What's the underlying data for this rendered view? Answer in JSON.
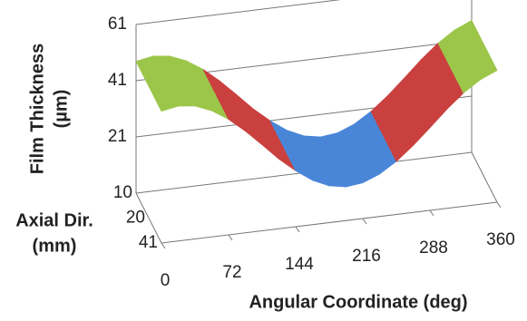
{
  "chart_data": {
    "type": "surface",
    "z_label": [
      "Film Thickness",
      "(µm)"
    ],
    "depth_label": [
      "Axial Dir.",
      "(mm)"
    ],
    "x_label": "Angular Coordinate (deg)",
    "x": [
      0,
      18,
      36,
      54,
      72,
      90,
      108,
      126,
      144,
      162,
      180,
      198,
      216,
      234,
      252,
      270,
      288,
      306,
      324,
      342,
      360
    ],
    "xlim": [
      0,
      360
    ],
    "xticks": [
      0,
      72,
      144,
      216,
      288,
      360
    ],
    "depth_categories": [
      "10",
      "20",
      "41"
    ],
    "z": [
      [
        47.9,
        49.0,
        48.3,
        45.9,
        42.1,
        37.2,
        31.6,
        25.8,
        20.9,
        16.8,
        14.1,
        13.0,
        13.7,
        16.1,
        19.9,
        24.8,
        30.4,
        36.2,
        41.3,
        45.3,
        47.9
      ],
      [
        47.9,
        49.0,
        48.3,
        45.9,
        42.1,
        37.2,
        31.6,
        25.8,
        20.9,
        16.8,
        14.1,
        13.0,
        13.7,
        16.1,
        19.9,
        24.8,
        30.4,
        36.2,
        41.3,
        45.3,
        47.9
      ],
      [
        47.9,
        49.0,
        48.3,
        45.9,
        42.1,
        37.2,
        31.6,
        25.8,
        20.9,
        16.8,
        14.1,
        13.0,
        13.7,
        16.1,
        19.9,
        24.8,
        30.4,
        36.2,
        41.3,
        45.3,
        47.9
      ]
    ],
    "zlim": [
      1,
      61
    ],
    "zticks": [
      21,
      41,
      61
    ],
    "band_colors": [
      "#4a86d8",
      "#c9403f",
      "#9cc64a"
    ],
    "grid": true
  }
}
